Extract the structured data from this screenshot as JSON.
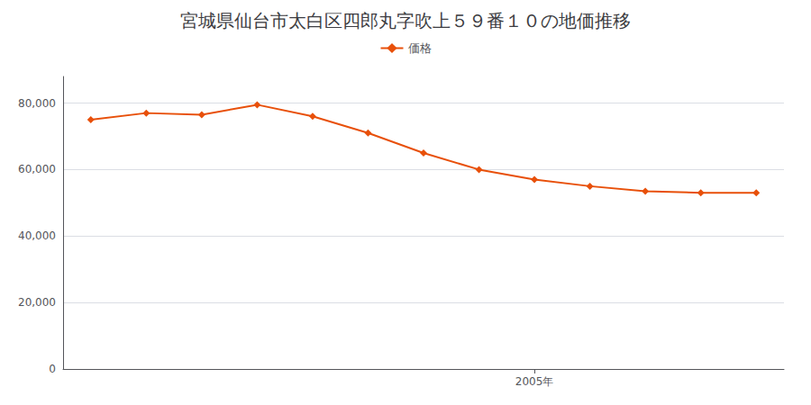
{
  "chart_data": {
    "type": "line",
    "title": "宮城県仙台市太白区四郎丸字吹上５９番１０の地価推移",
    "x": [
      1997,
      1998,
      1999,
      2000,
      2001,
      2002,
      2003,
      2004,
      2005,
      2006,
      2007,
      2008,
      2009
    ],
    "series": [
      {
        "name": "価格",
        "color": "#e8500a",
        "marker": "diamond",
        "values": [
          75000,
          77000,
          76500,
          79500,
          76000,
          71000,
          65000,
          60000,
          57000,
          55000,
          53500,
          53000,
          53000
        ]
      }
    ],
    "xlim": [
      1996.5,
      2009.5
    ],
    "xticks": [
      {
        "value": 2005,
        "label": "2005年"
      }
    ],
    "ylim": [
      0,
      88000
    ],
    "yticks": [
      0,
      {
        "value": 20000,
        "label": "20,000"
      },
      {
        "value": 40000,
        "label": "40,000"
      },
      {
        "value": 60000,
        "label": "60,000"
      },
      {
        "value": 80000,
        "label": "80,000"
      }
    ],
    "grid": true,
    "legend": "top"
  }
}
